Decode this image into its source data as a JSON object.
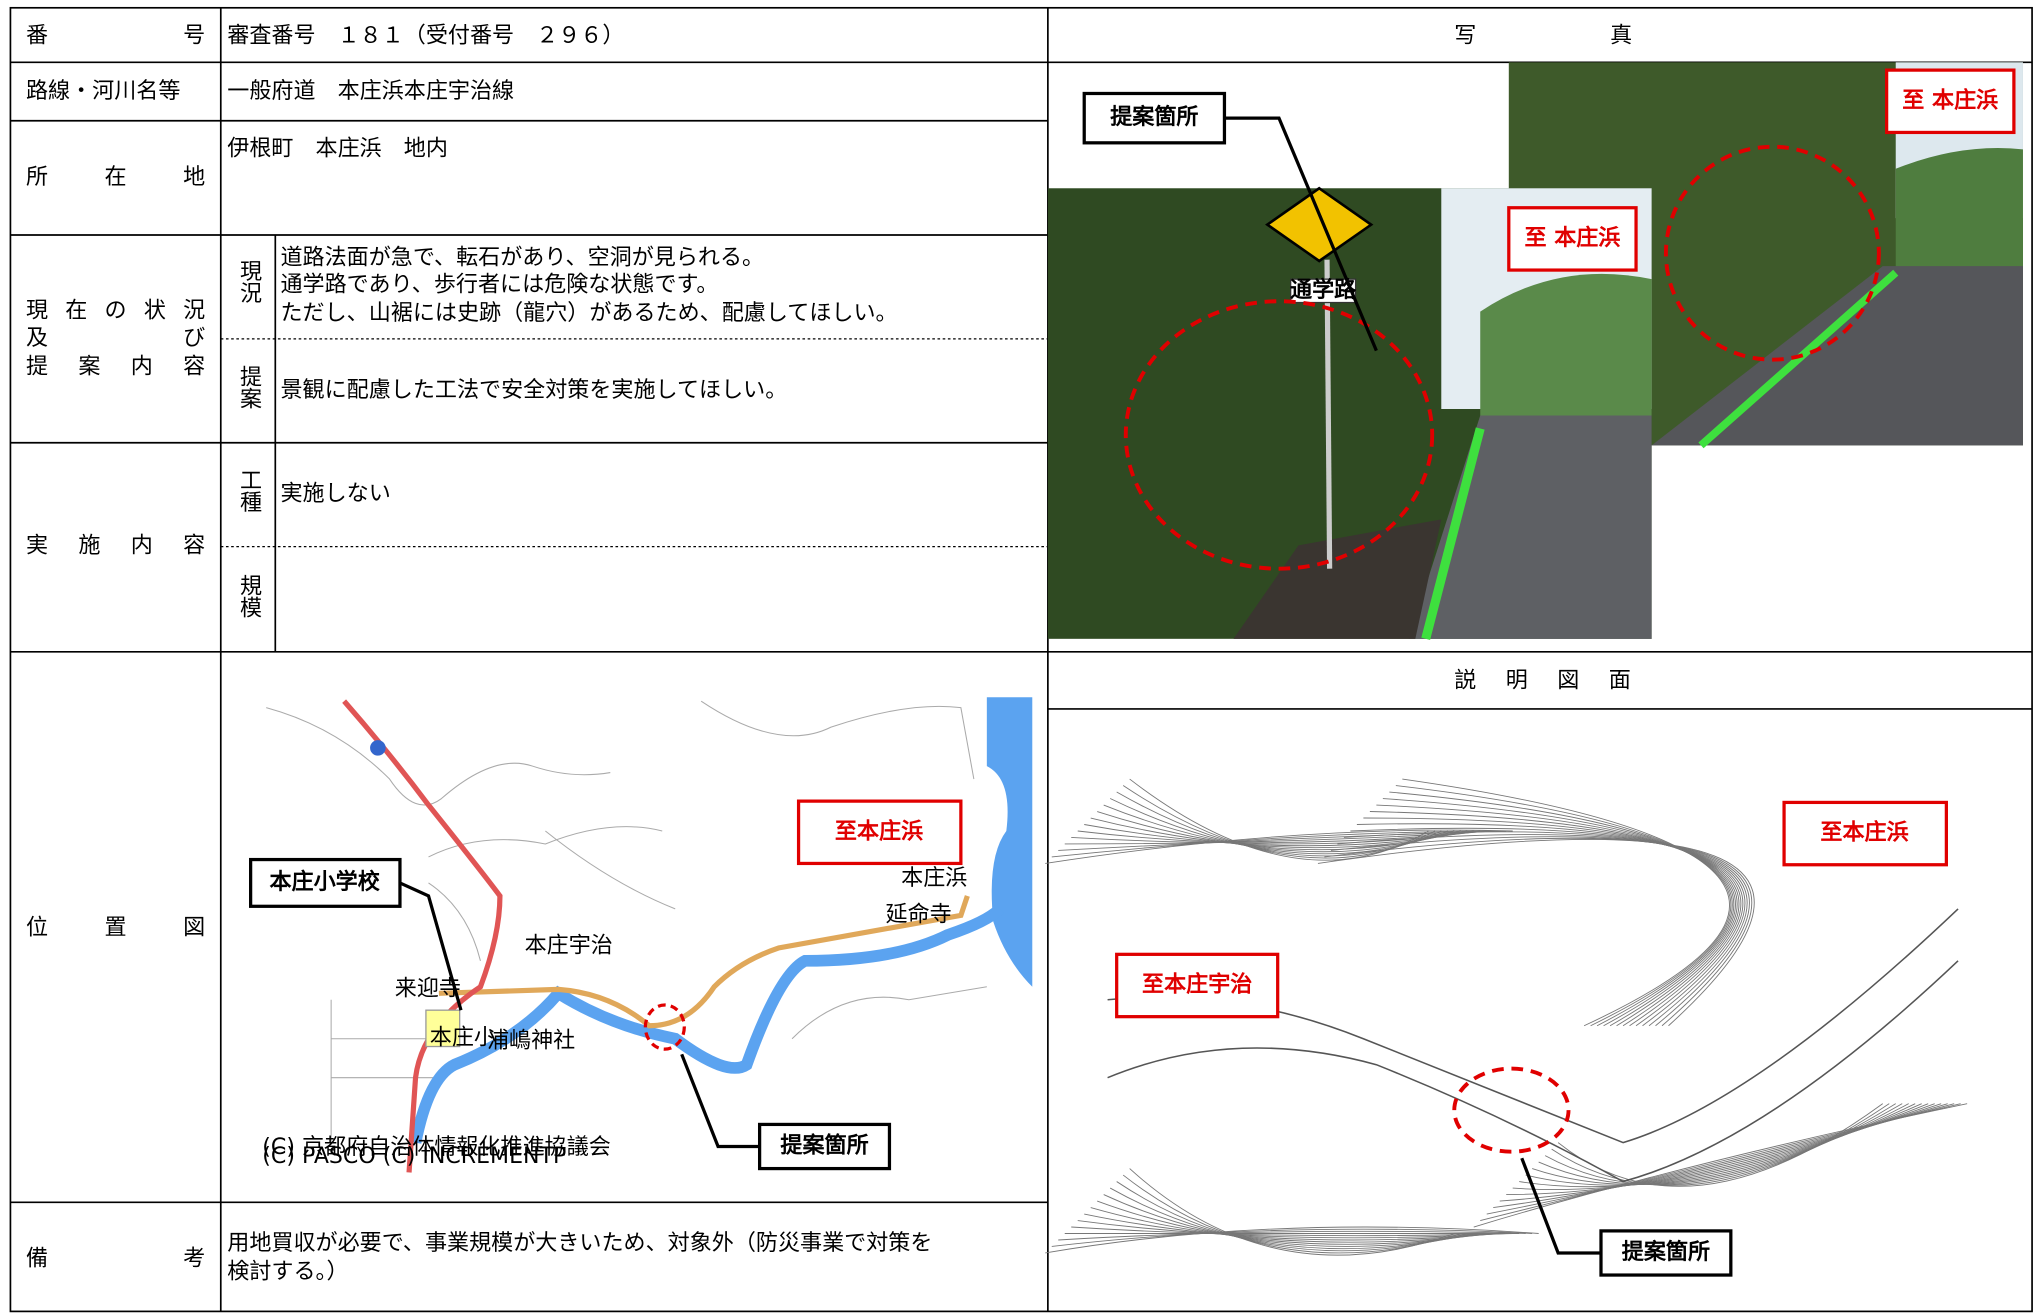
{
  "record": {
    "number": {
      "label": "番号",
      "value": "審査番号　１８１（受付番号　２９６）"
    },
    "route": {
      "label": "路線・河川名等",
      "value": "一般府道　本庄浜本庄宇治線"
    },
    "location": {
      "label": "所在地",
      "value": "伊根町　本庄浜　地内"
    },
    "status": {
      "label_lines": [
        "現在の状況",
        "及び",
        "提案内容"
      ],
      "current": {
        "label": "現況",
        "lines": [
          "道路法面が急で、転石があり、空洞が見られる。",
          "通学路であり、歩行者には危険な状態です。",
          "ただし、山裾には史跡（龍穴）があるため、配慮してほしい。"
        ]
      },
      "proposal": {
        "label": "提案",
        "value": "景観に配慮した工法で安全対策を実施してほしい。"
      }
    },
    "implementation": {
      "label": "実施内容",
      "work_type": {
        "label": "工種",
        "value": "実施しない"
      },
      "scale": {
        "label": "規模"
      }
    },
    "location_map": {
      "label": "位置図",
      "callouts": [
        "本庄小学校",
        "至本庄浜",
        "提案箇所"
      ],
      "place_labels": [
        "本庄宇治",
        "本庄浜",
        "本庄小",
        "来迎寺",
        "延命寺",
        "浦嶋神社"
      ],
      "credit_lines": [
        "(C) 京都府自治体情報化推進協議会",
        "(C) PASCO (C) INCREMENTP"
      ]
    },
    "remarks": {
      "label": "備考",
      "lines": [
        "用地買収が必要で、事業規模が大きいため、対象外（防災事業で対策を",
        "検討する。）"
      ]
    }
  },
  "photos": {
    "header": "写真",
    "callouts": [
      "提案箇所",
      "至 本庄浜",
      "至 本庄浜"
    ],
    "sign": "通学路"
  },
  "drawing": {
    "header": "説明図面",
    "callouts": [
      "至本庄浜",
      "至本庄宇治",
      "提案箇所"
    ]
  }
}
